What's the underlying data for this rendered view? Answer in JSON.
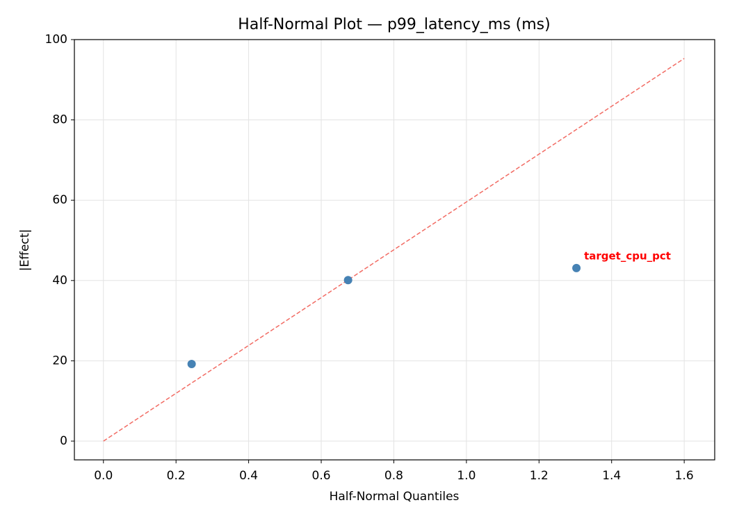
{
  "chart_data": {
    "type": "scatter",
    "title": "Half-Normal Plot — p99_latency_ms (ms)",
    "xlabel": "Half-Normal Quantiles",
    "ylabel": "|Effect|",
    "x": [
      0.243,
      0.674,
      1.303
    ],
    "values": [
      19.2,
      40.1,
      43.1
    ],
    "color": "#4682b4",
    "reference_line": {
      "x": [
        0,
        1.6
      ],
      "values": [
        0,
        95.3
      ],
      "color": "#f26b63",
      "dashed": true
    },
    "annotations": [
      {
        "text": "target_cpu_pct",
        "point": 2,
        "color": "#ff0000"
      }
    ],
    "xlim": [
      -0.08,
      1.684
    ],
    "ylim": [
      -4.67,
      100
    ],
    "xticks": [
      {
        "value": 0,
        "label": "0.0"
      },
      0.2,
      0.4,
      0.6,
      0.8,
      {
        "value": 1,
        "label": "1.0"
      },
      1.2,
      1.4,
      1.6
    ],
    "yticks": [
      0,
      20,
      40,
      60,
      80,
      100
    ],
    "grid": true
  }
}
